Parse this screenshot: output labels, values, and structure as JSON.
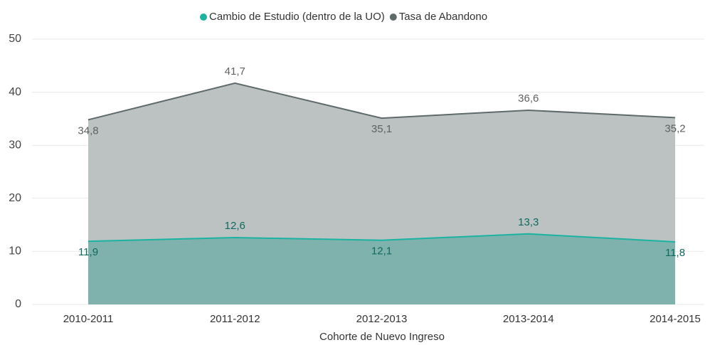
{
  "chart_data": {
    "type": "area",
    "x_label": "Cohorte de Nuevo Ingreso",
    "categories": [
      "2010-2011",
      "2011-2012",
      "2012-2013",
      "2013-2014",
      "2014-2015"
    ],
    "series": [
      {
        "name": "Tasa de Abandono",
        "color": "#5f6a6b",
        "fill": "#bcc2c2",
        "label_color": "#606060",
        "values": [
          34.8,
          41.7,
          35.1,
          36.6,
          35.2
        ],
        "value_labels": [
          "34,8",
          "41,7",
          "35,1",
          "36,6",
          "35,2"
        ]
      },
      {
        "name": "Cambio de Estudio (dentro de la UO)",
        "color": "#1ab3a2",
        "fill": "#80b2ad",
        "label_color": "#0e6a5f",
        "values": [
          11.9,
          12.6,
          12.1,
          13.3,
          11.8
        ],
        "value_labels": [
          "11,9",
          "12,6",
          "12,1",
          "13,3",
          "11,8"
        ]
      }
    ],
    "legend_order": [
      1,
      0
    ],
    "ylim": [
      0,
      50
    ],
    "yticks": [
      0,
      10,
      20,
      30,
      40,
      50
    ],
    "grid": true,
    "legend": "top"
  }
}
